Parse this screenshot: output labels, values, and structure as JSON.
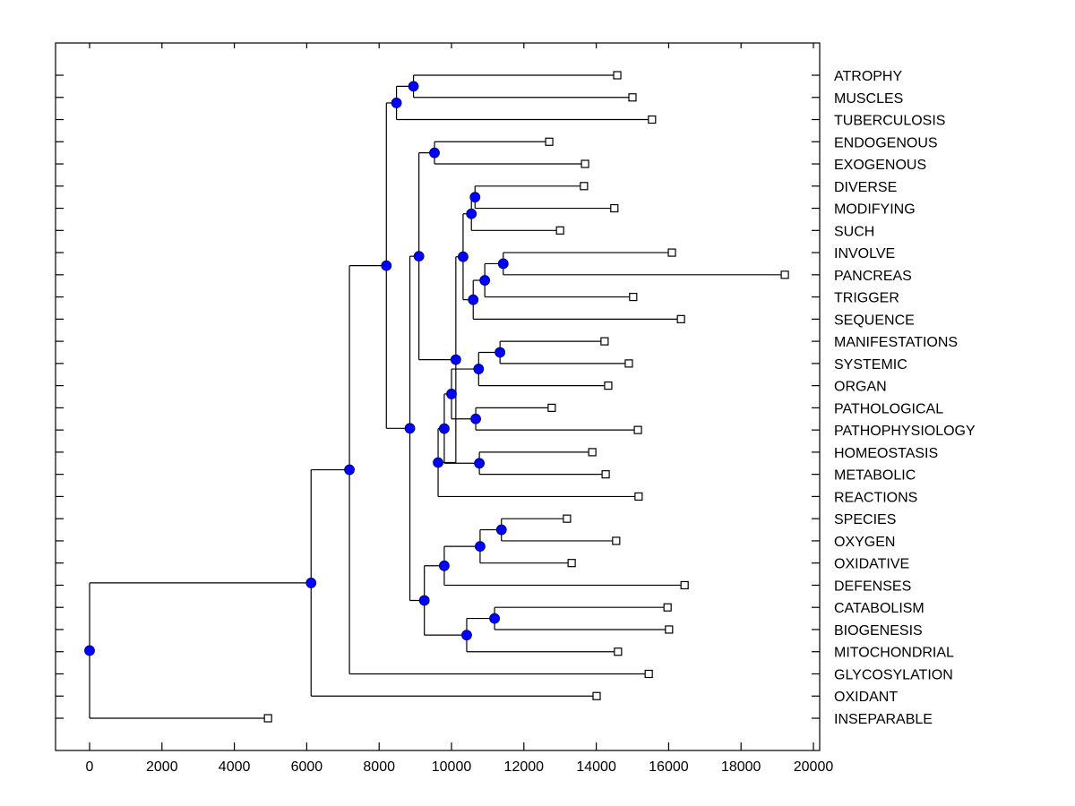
{
  "chart_data": {
    "type": "dendrogram",
    "title": "",
    "xlabel": "",
    "ylabel": "",
    "xlim": [
      -950,
      20100
    ],
    "x_ticks": [
      0,
      2000,
      4000,
      6000,
      8000,
      10000,
      12000,
      14000,
      16000,
      18000,
      20000
    ],
    "x_tick_labels": [
      "0",
      "2000",
      "4000",
      "6000",
      "8000",
      "10000",
      "12000",
      "14000",
      "16000",
      "18000",
      "20000"
    ],
    "grid": false,
    "legend": "none",
    "colors": {
      "node": "#0000ff",
      "leaf": "#ffffff",
      "line": "#000000"
    },
    "leaves": [
      {
        "label": "ATROPHY",
        "value": 14580
      },
      {
        "label": "MUSCLES",
        "value": 15000
      },
      {
        "label": "TUBERCULOSIS",
        "value": 15540
      },
      {
        "label": "ENDOGENOUS",
        "value": 12700
      },
      {
        "label": "EXOGENOUS",
        "value": 13690
      },
      {
        "label": "DIVERSE",
        "value": 13660
      },
      {
        "label": "MODIFYING",
        "value": 14500
      },
      {
        "label": "SUCH",
        "value": 13000
      },
      {
        "label": "INVOLVE",
        "value": 16090
      },
      {
        "label": "PANCREAS",
        "value": 19210
      },
      {
        "label": "TRIGGER",
        "value": 15020
      },
      {
        "label": "SEQUENCE",
        "value": 16340
      },
      {
        "label": "MANIFESTATIONS",
        "value": 14230
      },
      {
        "label": "SYSTEMIC",
        "value": 14900
      },
      {
        "label": "ORGAN",
        "value": 14330
      },
      {
        "label": "PATHOLOGICAL",
        "value": 12770
      },
      {
        "label": "PATHOPHYSIOLOGY",
        "value": 15150
      },
      {
        "label": "HOMEOSTASIS",
        "value": 13890
      },
      {
        "label": "METABOLIC",
        "value": 14260
      },
      {
        "label": "REACTIONS",
        "value": 15170
      },
      {
        "label": "SPECIES",
        "value": 13190
      },
      {
        "label": "OXYGEN",
        "value": 14550
      },
      {
        "label": "OXIDATIVE",
        "value": 13320
      },
      {
        "label": "DEFENSES",
        "value": 16440
      },
      {
        "label": "CATABOLISM",
        "value": 15970
      },
      {
        "label": "BIOGENESIS",
        "value": 16010
      },
      {
        "label": "MITOCHONDRIAL",
        "value": 14600
      },
      {
        "label": "GLYCOSYLATION",
        "value": 15450
      },
      {
        "label": "OXIDANT",
        "value": 14010
      },
      {
        "label": "INSEPARABLE",
        "value": 4930
      }
    ],
    "nodes": [
      {
        "id": "n_atr_mus",
        "value": 8950,
        "children": [
          "ATROPHY",
          "MUSCLES"
        ]
      },
      {
        "id": "n_atr_tub",
        "value": 8480,
        "children": [
          "n_atr_mus",
          "TUBERCULOSIS"
        ]
      },
      {
        "id": "n_endo_exo",
        "value": 9530,
        "children": [
          "ENDOGENOUS",
          "EXOGENOUS"
        ]
      },
      {
        "id": "n_div_mod",
        "value": 10650,
        "children": [
          "DIVERSE",
          "MODIFYING"
        ]
      },
      {
        "id": "n_div_such",
        "value": 10550,
        "children": [
          "n_div_mod",
          "SUCH"
        ]
      },
      {
        "id": "n_inv_pan",
        "value": 11430,
        "children": [
          "INVOLVE",
          "PANCREAS"
        ]
      },
      {
        "id": "n_inv_trig",
        "value": 10920,
        "children": [
          "n_inv_pan",
          "TRIGGER"
        ]
      },
      {
        "id": "n_inv_seq",
        "value": 10600,
        "children": [
          "n_inv_trig",
          "SEQUENCE"
        ]
      },
      {
        "id": "n_div_inv",
        "value": 10320,
        "children": [
          "n_div_such",
          "n_inv_seq"
        ]
      },
      {
        "id": "n_man_sys",
        "value": 11340,
        "children": [
          "MANIFESTATIONS",
          "SYSTEMIC"
        ]
      },
      {
        "id": "n_man_org",
        "value": 10750,
        "children": [
          "n_man_sys",
          "ORGAN"
        ]
      },
      {
        "id": "n_path",
        "value": 10670,
        "children": [
          "PATHOLOGICAL",
          "PATHOPHYSIOLOGY"
        ]
      },
      {
        "id": "n_man_path",
        "value": 10000,
        "children": [
          "n_man_org",
          "n_path"
        ]
      },
      {
        "id": "n_home_met",
        "value": 10770,
        "children": [
          "HOMEOSTASIS",
          "METABOLIC"
        ]
      },
      {
        "id": "n_man_home",
        "value": 9800,
        "children": [
          "n_man_path",
          "n_home_met"
        ]
      },
      {
        "id": "n_man_react",
        "value": 9630,
        "children": [
          "n_man_home",
          "REACTIONS"
        ]
      },
      {
        "id": "n_div_man",
        "value": 10120,
        "children": [
          "n_div_inv",
          "n_man_react"
        ]
      },
      {
        "id": "n_endo_div",
        "value": 9100,
        "children": [
          "n_endo_exo",
          "n_div_man"
        ]
      },
      {
        "id": "n_spec_oxy",
        "value": 11380,
        "children": [
          "SPECIES",
          "OXYGEN"
        ]
      },
      {
        "id": "n_spec_oxi",
        "value": 10790,
        "children": [
          "n_spec_oxy",
          "OXIDATIVE"
        ]
      },
      {
        "id": "n_spec_def",
        "value": 9800,
        "children": [
          "n_spec_oxi",
          "DEFENSES"
        ]
      },
      {
        "id": "n_cat_bio",
        "value": 11190,
        "children": [
          "CATABOLISM",
          "BIOGENESIS"
        ]
      },
      {
        "id": "n_cat_mit",
        "value": 10420,
        "children": [
          "n_cat_bio",
          "MITOCHONDRIAL"
        ]
      },
      {
        "id": "n_spec_cat",
        "value": 9250,
        "children": [
          "n_spec_def",
          "n_cat_mit"
        ]
      },
      {
        "id": "n_endo_spec",
        "value": 8850,
        "children": [
          "n_endo_div",
          "n_spec_cat"
        ]
      },
      {
        "id": "n_atr_endo",
        "value": 8200,
        "children": [
          "n_atr_tub",
          "n_endo_spec"
        ]
      },
      {
        "id": "n_atr_gly",
        "value": 7180,
        "children": [
          "n_atr_endo",
          "GLYCOSYLATION"
        ]
      },
      {
        "id": "n_atr_oxd",
        "value": 6120,
        "children": [
          "n_atr_gly",
          "OXIDANT"
        ]
      },
      {
        "id": "root",
        "value": 0,
        "children": [
          "n_atr_oxd",
          "INSEPARABLE"
        ]
      }
    ]
  }
}
